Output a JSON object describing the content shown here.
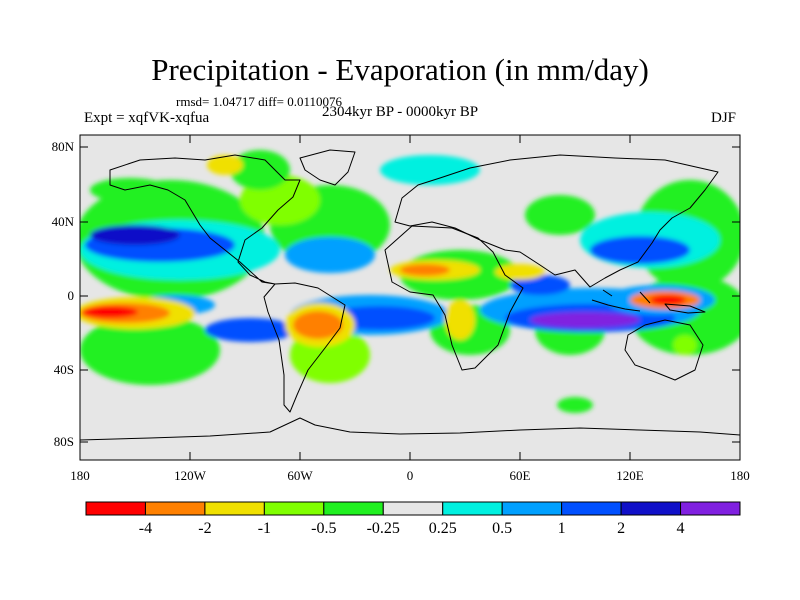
{
  "title": "Precipitation - Evaporation (in mm/day)",
  "stats": "rmsd= 1.04717  diff= 0.0110076",
  "experiment": "Expt = xqfVK-xqfua",
  "period": "2304kyr BP - 0000kyr BP",
  "season": "DJF",
  "y_ticks": [
    "80N",
    "40N",
    "0",
    "40S",
    "80S"
  ],
  "x_ticks": [
    "180",
    "120W",
    "60W",
    "0",
    "60E",
    "120E",
    "180"
  ],
  "colorbar": {
    "labels": [
      "-4",
      "-2",
      "-1",
      "-0.5",
      "-0.25",
      "0.25",
      "0.5",
      "1",
      "2",
      "4"
    ],
    "colors": [
      "#ff0000",
      "#ff8000",
      "#f0e000",
      "#80ff00",
      "#20f020",
      "#e6e6e6",
      "#00f0e0",
      "#00a0ff",
      "#0050ff",
      "#1010c8",
      "#8020e0"
    ]
  }
}
